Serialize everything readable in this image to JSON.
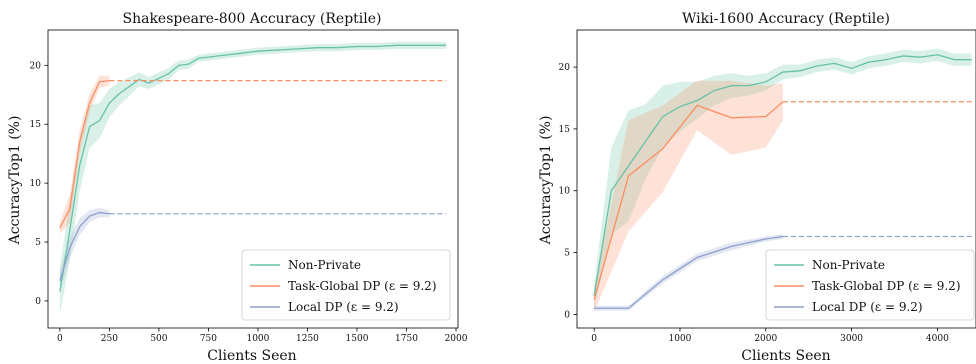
{
  "colors": {
    "non_private": "#66c2a5",
    "task_global": "#fc8d62",
    "local": "#8da0cb"
  },
  "chart_data": [
    {
      "type": "line",
      "title": "Shakespeare-800 Accuracy (Reptile)",
      "xlabel": "Clients Seen",
      "ylabel": "AccuracyTop1 (%)",
      "xlim": [
        -60,
        2010
      ],
      "ylim": [
        -2.3,
        23.0
      ],
      "xticks": [
        0,
        250,
        500,
        750,
        1000,
        1250,
        1500,
        1750,
        2000
      ],
      "yticks": [
        0,
        5,
        10,
        15,
        20
      ],
      "legend_position": "lower-right",
      "series": [
        {
          "name": "Non-Private",
          "color": "#66c2a5",
          "x": [
            0,
            50,
            100,
            150,
            200,
            250,
            300,
            350,
            400,
            450,
            500,
            550,
            600,
            650,
            700,
            750,
            800,
            850,
            900,
            950,
            1000,
            1100,
            1200,
            1300,
            1400,
            1500,
            1600,
            1700,
            1800,
            1900,
            1950
          ],
          "y": [
            0.8,
            6.0,
            11.5,
            14.8,
            15.3,
            16.8,
            17.6,
            18.2,
            18.8,
            18.5,
            18.9,
            19.3,
            20.0,
            20.1,
            20.6,
            20.7,
            20.8,
            20.9,
            21.0,
            21.1,
            21.2,
            21.3,
            21.4,
            21.5,
            21.5,
            21.6,
            21.6,
            21.7,
            21.7,
            21.7,
            21.7
          ],
          "band": [
            2.0,
            2.5,
            2.2,
            1.8,
            1.5,
            1.2,
            1.0,
            0.8,
            0.6,
            0.5,
            0.5,
            0.5,
            0.4,
            0.4,
            0.3,
            0.3,
            0.3,
            0.3,
            0.3,
            0.3,
            0.3,
            0.3,
            0.3,
            0.3,
            0.3,
            0.3,
            0.3,
            0.3,
            0.3,
            0.3,
            0.3
          ],
          "extend_to": null
        },
        {
          "name": "Task-Global DP (ε = 9.2)",
          "color": "#fc8d62",
          "x": [
            0,
            50,
            100,
            150,
            200,
            250
          ],
          "y": [
            6.2,
            7.8,
            13.5,
            16.8,
            18.6,
            18.7
          ],
          "band": [
            0.5,
            1.2,
            1.0,
            0.8,
            0.5,
            0.4
          ],
          "extend_to": 1950
        },
        {
          "name": "Local DP (ε = 9.2)",
          "color": "#8da0cb",
          "x": [
            0,
            50,
            100,
            150,
            200,
            250
          ],
          "y": [
            1.7,
            4.5,
            6.3,
            7.2,
            7.5,
            7.4
          ],
          "band": [
            0.8,
            0.9,
            0.7,
            0.5,
            0.4,
            0.3
          ],
          "extend_to": 1950
        }
      ]
    },
    {
      "type": "line",
      "title": "Wiki-1600 Accuracy (Reptile)",
      "xlabel": "Clients Seen",
      "ylabel": "AccuracyTop1 (%)",
      "xlim": [
        -200,
        4450
      ],
      "ylim": [
        -1.1,
        23.0
      ],
      "xticks": [
        0,
        1000,
        2000,
        3000,
        4000
      ],
      "yticks": [
        0,
        5,
        10,
        15,
        20
      ],
      "legend_position": "lower-right",
      "series": [
        {
          "name": "Non-Private",
          "color": "#66c2a5",
          "x": [
            0,
            200,
            400,
            600,
            800,
            1000,
            1200,
            1400,
            1600,
            1800,
            2000,
            2200,
            2400,
            2600,
            2800,
            3000,
            3200,
            3400,
            3600,
            3800,
            4000,
            4200,
            4400
          ],
          "y": [
            1.5,
            10.0,
            12.0,
            14.0,
            16.0,
            16.8,
            17.3,
            18.1,
            18.5,
            18.5,
            18.8,
            19.6,
            19.7,
            20.1,
            20.3,
            19.9,
            20.4,
            20.6,
            20.9,
            20.8,
            21.0,
            20.6,
            20.6
          ],
          "band": [
            1.0,
            3.5,
            4.5,
            3.0,
            2.5,
            2.0,
            1.5,
            1.2,
            1.0,
            0.8,
            0.7,
            0.6,
            0.5,
            0.5,
            0.5,
            0.5,
            0.5,
            0.5,
            0.5,
            0.5,
            0.5,
            0.5,
            0.5
          ],
          "extend_to": null
        },
        {
          "name": "Task-Global DP (ε = 9.2)",
          "color": "#fc8d62",
          "x": [
            0,
            400,
            800,
            1200,
            1600,
            2000,
            2200
          ],
          "y": [
            1.2,
            11.2,
            13.4,
            16.9,
            15.9,
            16.0,
            17.2
          ],
          "band": [
            1.0,
            4.5,
            3.5,
            2.0,
            3.0,
            2.5,
            1.5
          ],
          "extend_to": 4400
        },
        {
          "name": "Local DP (ε = 9.2)",
          "color": "#8da0cb",
          "x": [
            0,
            400,
            800,
            1200,
            1600,
            2000,
            2200
          ],
          "y": [
            0.5,
            0.5,
            2.8,
            4.6,
            5.5,
            6.1,
            6.3
          ],
          "band": [
            0.2,
            0.2,
            0.3,
            0.3,
            0.3,
            0.2,
            0.2
          ],
          "extend_to": 4400
        }
      ]
    }
  ]
}
